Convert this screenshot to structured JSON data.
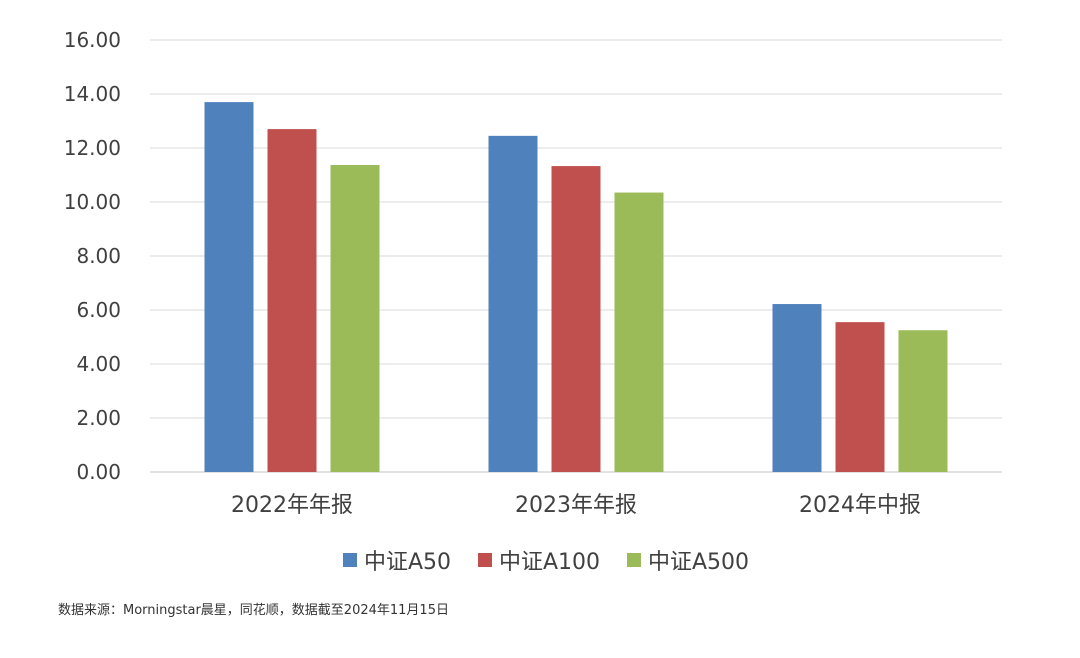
{
  "chart_data": {
    "type": "bar",
    "categories": [
      "2022年年报",
      "2023年年报",
      "2024年中报"
    ],
    "series": [
      {
        "name": "中证A50",
        "color": "#4F81BD",
        "values": [
          13.7,
          12.45,
          6.22
        ]
      },
      {
        "name": "中证A100",
        "color": "#C0504D",
        "values": [
          12.7,
          11.33,
          5.55
        ]
      },
      {
        "name": "中证A500",
        "color": "#9BBB59",
        "values": [
          11.37,
          10.35,
          5.25
        ]
      }
    ],
    "ylim": [
      0,
      16
    ],
    "yticks": [
      "0.00",
      "2.00",
      "4.00",
      "6.00",
      "8.00",
      "10.00",
      "12.00",
      "14.00",
      "16.00"
    ],
    "grid": true,
    "legend": "bottom",
    "gridColor": "#D9D9D9"
  },
  "footnote": "数据来源：Morningstar晨星，同花顺，数据截至2024年11月15日"
}
